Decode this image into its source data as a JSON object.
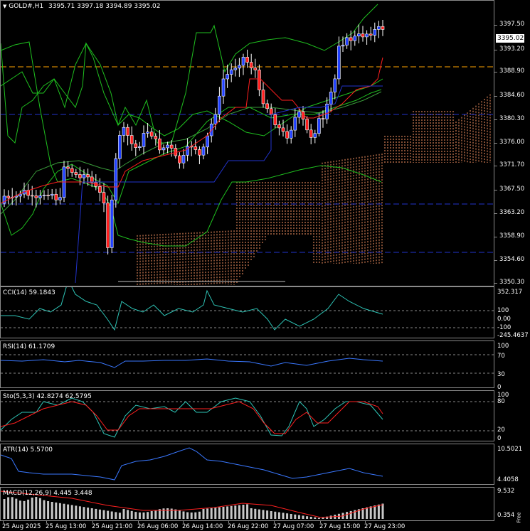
{
  "main": {
    "title": "GOLD#,H1",
    "ohlc": "3395.71 3397.18 3394.89 3395.02",
    "current_price": "3395.02",
    "menu_icon": "triangle-down-icon",
    "price_ticks": [
      "3397.50",
      "3393.20",
      "3388.90",
      "3384.60",
      "3380.30",
      "3376.00",
      "3371.70",
      "3367.50",
      "3363.20",
      "3358.90",
      "3354.60",
      "3350.30"
    ],
    "colors": {
      "bull": "#1f3fff",
      "bear": "#ff1e1e",
      "bands": "#1fbf1f",
      "hline_orange": "#ffa500",
      "hline_blue": "#2233cc",
      "cloud": "#ff9966"
    }
  },
  "cci": {
    "label": "CCI(14) 59.1843",
    "ticks": [
      "352.317",
      "100",
      "0.00",
      "-100",
      "-245.4637"
    ]
  },
  "rsi": {
    "label": "RSI(14) 61.1709",
    "ticks": [
      "100",
      "70",
      "30",
      "0"
    ]
  },
  "sto": {
    "label": "Sto(5,3,3) 42.8274 62.5795",
    "ticks": [
      "100",
      "80",
      "20",
      "0"
    ]
  },
  "atr": {
    "label": "ATR(14) 5.5700",
    "ticks": [
      "10.5021",
      "4.4058"
    ]
  },
  "macd": {
    "label": "MACD(12,26,9) 4.445 3.448",
    "ticks": [
      "9.532",
      "0.354"
    ],
    "corner": "Free"
  },
  "time_axis": [
    "25 Aug 2025",
    "25 Aug 13:00",
    "25 Aug 21:00",
    "26 Aug 06:00",
    "26 Aug 14:00",
    "26 Aug 22:00",
    "27 Aug 07:00",
    "27 Aug 15:00",
    "27 Aug 23:00"
  ]
}
